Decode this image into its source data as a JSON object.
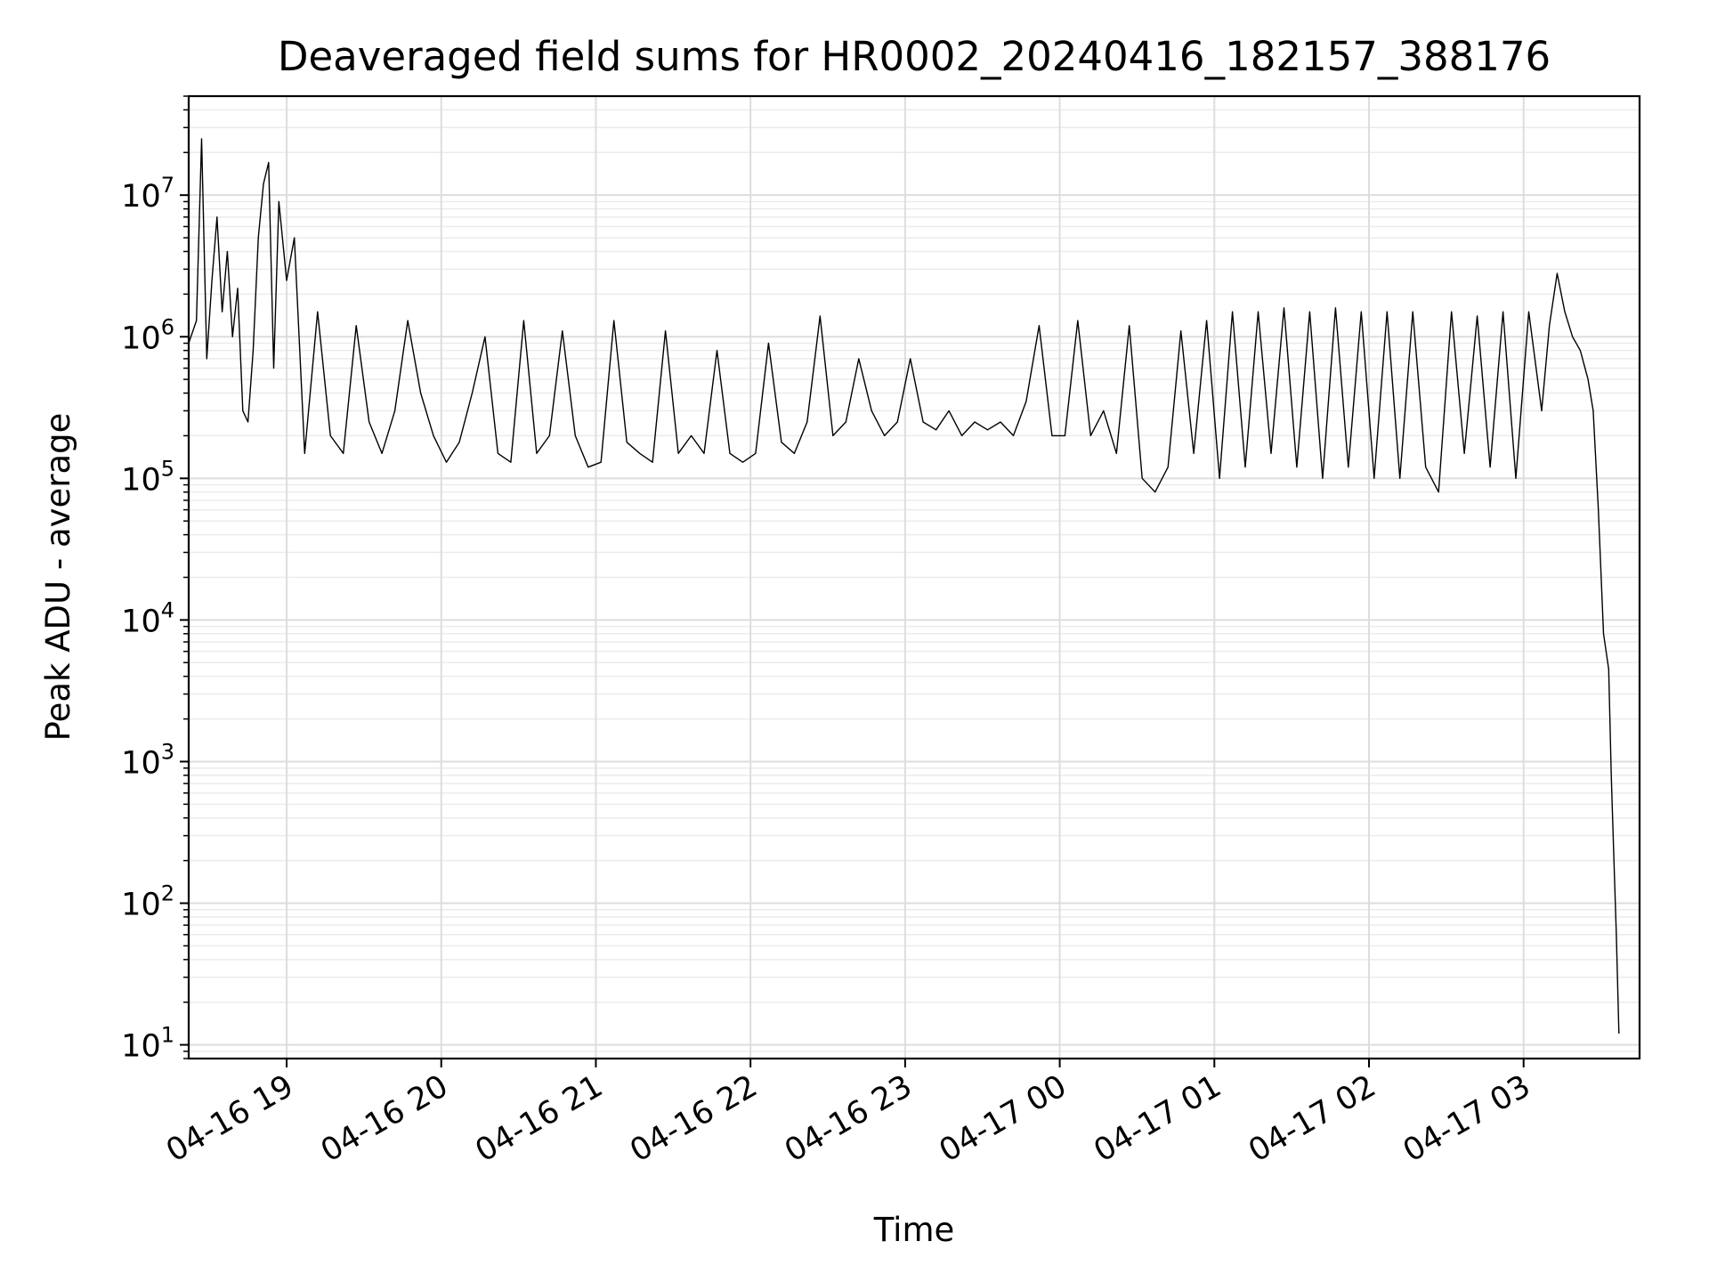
{
  "chart_data": {
    "type": "line",
    "title": "Deaveraged field sums for HR0002_20240416_182157_388176",
    "xlabel": "Time",
    "ylabel": "Peak ADU - average",
    "yscale": "log",
    "ylim": [
      8,
      50000000
    ],
    "xlim": [
      "04-16 18:22",
      "04-17 03:45"
    ],
    "grid": true,
    "legend": "none",
    "line_color": "#000000",
    "x_ticks": [
      {
        "label": "04-16 19",
        "t": "04-16 19:00"
      },
      {
        "label": "04-16 20",
        "t": "04-16 20:00"
      },
      {
        "label": "04-16 21",
        "t": "04-16 21:00"
      },
      {
        "label": "04-16 22",
        "t": "04-16 22:00"
      },
      {
        "label": "04-16 23",
        "t": "04-16 23:00"
      },
      {
        "label": "04-17 00",
        "t": "04-17 00:00"
      },
      {
        "label": "04-17 01",
        "t": "04-17 01:00"
      },
      {
        "label": "04-17 02",
        "t": "04-17 02:00"
      },
      {
        "label": "04-17 03",
        "t": "04-17 03:00"
      }
    ],
    "y_ticks": [
      {
        "base": "10",
        "exp": "1",
        "value": 10
      },
      {
        "base": "10",
        "exp": "2",
        "value": 100
      },
      {
        "base": "10",
        "exp": "3",
        "value": 1000
      },
      {
        "base": "10",
        "exp": "4",
        "value": 10000
      },
      {
        "base": "10",
        "exp": "5",
        "value": 100000
      },
      {
        "base": "10",
        "exp": "6",
        "value": 1000000
      },
      {
        "base": "10",
        "exp": "7",
        "value": 10000000
      }
    ],
    "series": [
      {
        "x": [
          "04-16 18:22",
          "04-16 18:25",
          "04-16 18:27",
          "04-16 18:29",
          "04-16 18:31",
          "04-16 18:33",
          "04-16 18:35",
          "04-16 18:37",
          "04-16 18:39",
          "04-16 18:41",
          "04-16 18:43",
          "04-16 18:45",
          "04-16 18:47",
          "04-16 18:49",
          "04-16 18:51",
          "04-16 18:53",
          "04-16 18:55",
          "04-16 18:57",
          "04-16 19:00",
          "04-16 19:03",
          "04-16 19:07",
          "04-16 19:12",
          "04-16 19:17",
          "04-16 19:22",
          "04-16 19:27",
          "04-16 19:32",
          "04-16 19:37",
          "04-16 19:42",
          "04-16 19:47",
          "04-16 19:52",
          "04-16 19:57",
          "04-16 20:02",
          "04-16 20:07",
          "04-16 20:12",
          "04-16 20:17",
          "04-16 20:22",
          "04-16 20:27",
          "04-16 20:32",
          "04-16 20:37",
          "04-16 20:42",
          "04-16 20:47",
          "04-16 20:52",
          "04-16 20:57",
          "04-16 21:02",
          "04-16 21:07",
          "04-16 21:12",
          "04-16 21:17",
          "04-16 21:22",
          "04-16 21:27",
          "04-16 21:32",
          "04-16 21:37",
          "04-16 21:42",
          "04-16 21:47",
          "04-16 21:52",
          "04-16 21:57",
          "04-16 22:02",
          "04-16 22:07",
          "04-16 22:12",
          "04-16 22:17",
          "04-16 22:22",
          "04-16 22:27",
          "04-16 22:32",
          "04-16 22:37",
          "04-16 22:42",
          "04-16 22:47",
          "04-16 22:52",
          "04-16 22:57",
          "04-16 23:02",
          "04-16 23:07",
          "04-16 23:12",
          "04-16 23:17",
          "04-16 23:22",
          "04-16 23:27",
          "04-16 23:32",
          "04-16 23:37",
          "04-16 23:42",
          "04-16 23:47",
          "04-16 23:52",
          "04-16 23:57",
          "04-17 00:02",
          "04-17 00:07",
          "04-17 00:12",
          "04-17 00:17",
          "04-17 00:22",
          "04-17 00:27",
          "04-17 00:32",
          "04-17 00:37",
          "04-17 00:42",
          "04-17 00:47",
          "04-17 00:52",
          "04-17 00:57",
          "04-17 01:02",
          "04-17 01:07",
          "04-17 01:12",
          "04-17 01:17",
          "04-17 01:22",
          "04-17 01:27",
          "04-17 01:32",
          "04-17 01:37",
          "04-17 01:42",
          "04-17 01:47",
          "04-17 01:52",
          "04-17 01:57",
          "04-17 02:02",
          "04-17 02:07",
          "04-17 02:12",
          "04-17 02:17",
          "04-17 02:22",
          "04-17 02:27",
          "04-17 02:32",
          "04-17 02:37",
          "04-17 02:42",
          "04-17 02:47",
          "04-17 02:52",
          "04-17 02:57",
          "04-17 03:02",
          "04-17 03:07",
          "04-17 03:10",
          "04-17 03:13",
          "04-17 03:16",
          "04-17 03:19",
          "04-17 03:22",
          "04-17 03:25",
          "04-17 03:27",
          "04-17 03:29",
          "04-17 03:31",
          "04-17 03:33",
          "04-17 03:34",
          "04-17 03:35",
          "04-17 03:36",
          "04-17 03:37"
        ],
        "values": [
          900000,
          1300000,
          25000000,
          700000,
          2500000,
          7000000,
          1500000,
          4000000,
          1000000,
          2200000,
          300000,
          250000,
          800000,
          5000000,
          12000000,
          17000000,
          600000,
          9000000,
          2500000,
          5000000,
          150000,
          1500000,
          200000,
          150000,
          1200000,
          250000,
          150000,
          300000,
          1300000,
          400000,
          200000,
          130000,
          180000,
          400000,
          1000000,
          150000,
          130000,
          1300000,
          150000,
          200000,
          1100000,
          200000,
          120000,
          130000,
          1300000,
          180000,
          150000,
          130000,
          1100000,
          150000,
          200000,
          150000,
          800000,
          150000,
          130000,
          150000,
          900000,
          180000,
          150000,
          250000,
          1400000,
          200000,
          250000,
          700000,
          300000,
          200000,
          250000,
          700000,
          250000,
          220000,
          300000,
          200000,
          250000,
          220000,
          250000,
          200000,
          350000,
          1200000,
          200000,
          200000,
          1300000,
          200000,
          300000,
          150000,
          1200000,
          100000,
          80000,
          120000,
          1100000,
          150000,
          1300000,
          100000,
          1500000,
          120000,
          1500000,
          150000,
          1600000,
          120000,
          1500000,
          100000,
          1600000,
          120000,
          1500000,
          100000,
          1500000,
          100000,
          1500000,
          120000,
          80000,
          1500000,
          150000,
          1400000,
          120000,
          1500000,
          100000,
          1500000,
          300000,
          1200000,
          2800000,
          1500000,
          1000000,
          800000,
          500000,
          300000,
          60000,
          8000,
          4500,
          800,
          220,
          60,
          12
        ]
      }
    ]
  }
}
